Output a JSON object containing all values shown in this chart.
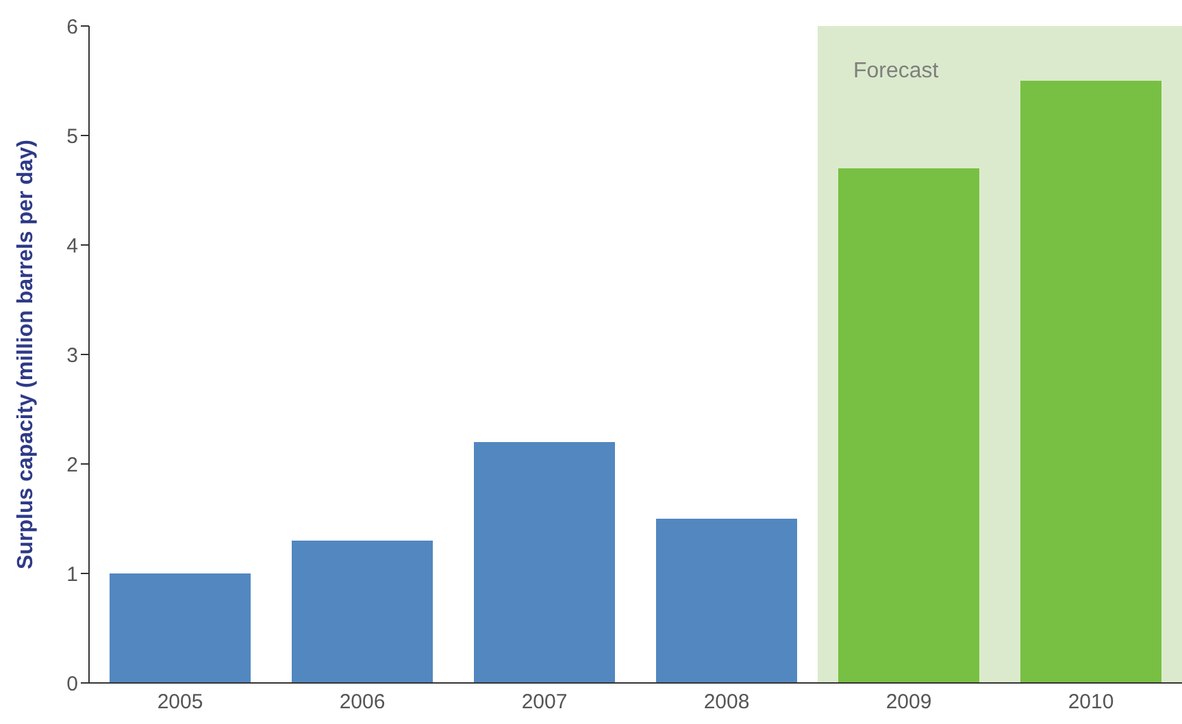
{
  "chart_data": {
    "type": "bar",
    "ylabel": "Surplus capacity (million barrels per day)",
    "categories": [
      "2005",
      "2006",
      "2007",
      "2008",
      "2009",
      "2010"
    ],
    "values": [
      1.0,
      1.3,
      2.2,
      1.5,
      4.7,
      5.5
    ],
    "colors": [
      "#5287c0",
      "#5287c0",
      "#5287c0",
      "#5287c0",
      "#77c043",
      "#77c043"
    ],
    "ylim": [
      0,
      6
    ],
    "yticks": [
      0,
      1,
      2,
      3,
      4,
      5,
      6
    ],
    "bands": [
      {
        "axis": "x",
        "from": "2009",
        "to": "2010",
        "label": "Forecast",
        "color": "#dbeacc"
      }
    ]
  }
}
